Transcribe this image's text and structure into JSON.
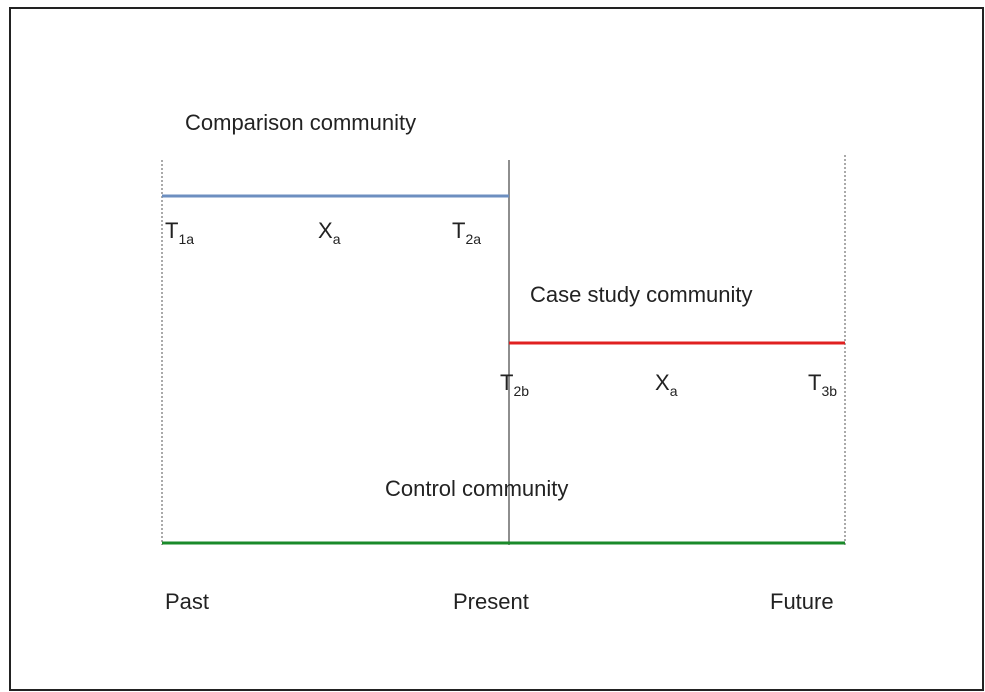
{
  "groups": [
    {
      "name": "Comparison community",
      "labels": [
        {
          "main": "T",
          "sub": "1a"
        },
        {
          "main": "X",
          "sub": "a"
        },
        {
          "main": "T",
          "sub": "2a"
        }
      ]
    },
    {
      "name": "Case study community",
      "labels": [
        {
          "main": "T",
          "sub": "2b"
        },
        {
          "main": "X",
          "sub": "a"
        },
        {
          "main": "T",
          "sub": "3b"
        }
      ]
    },
    {
      "name": "Control community",
      "labels": []
    }
  ],
  "timeline": [
    "Past",
    "Present",
    "Future"
  ]
}
